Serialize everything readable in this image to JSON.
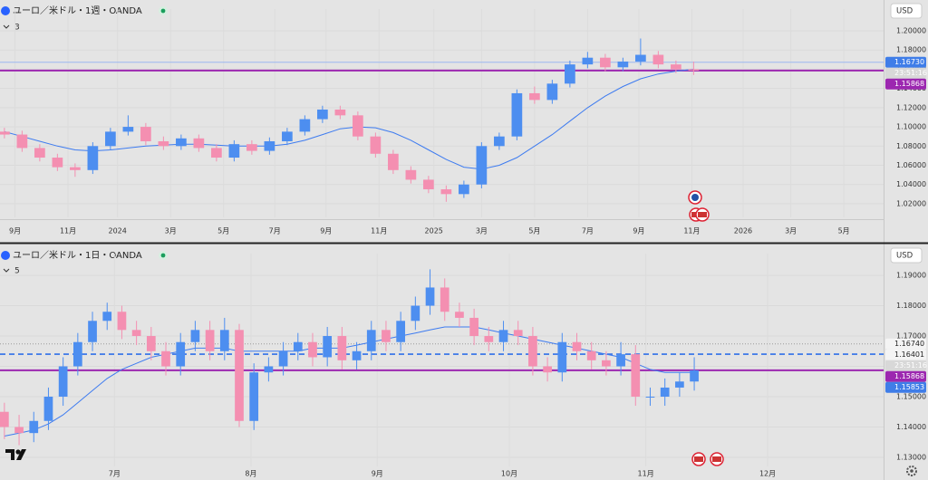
{
  "chart_data": [
    {
      "type": "candlestick",
      "title": "ユーロ／米ドル・1週・OANDA",
      "indicators": 3,
      "currency": "USD",
      "time_label": "23:51:16",
      "up_color": "#4d8ef0",
      "down_color": "#f48fb1",
      "ma_color": "#3d7bf0",
      "xlim": [
        -0.25,
        49.75
      ],
      "ylim": [
        1.0058,
        1.2132
      ],
      "grid": true,
      "xticks": [
        {
          "value": 0.6,
          "label": "9月"
        },
        {
          "value": 3.6,
          "label": "11月"
        },
        {
          "value": 6.4,
          "label": "2024"
        },
        {
          "value": 9.4,
          "label": "3月"
        },
        {
          "value": 12.4,
          "label": "5月"
        },
        {
          "value": 15.3,
          "label": "7月"
        },
        {
          "value": 18.2,
          "label": "9月"
        },
        {
          "value": 21.2,
          "label": "11月"
        },
        {
          "value": 24.3,
          "label": "2025"
        },
        {
          "value": 27.0,
          "label": "3月"
        },
        {
          "value": 30.0,
          "label": "5月"
        },
        {
          "value": 33.0,
          "label": "7月"
        },
        {
          "value": 35.9,
          "label": "9月"
        },
        {
          "value": 38.9,
          "label": "11月"
        },
        {
          "value": 41.8,
          "label": "2026"
        },
        {
          "value": 44.5,
          "label": "3月"
        },
        {
          "value": 47.5,
          "label": "5月"
        }
      ],
      "yticks": [
        {
          "value": 1.02,
          "label": "1.02000"
        },
        {
          "value": 1.04,
          "label": "1.04000"
        },
        {
          "value": 1.06,
          "label": "1.06000"
        },
        {
          "value": 1.08,
          "label": "1.08000"
        },
        {
          "value": 1.1,
          "label": "1.10000"
        },
        {
          "value": 1.12,
          "label": "1.12000"
        },
        {
          "value": 1.14,
          "label": "1.14000"
        },
        {
          "value": 1.16,
          "label": "1.16000"
        },
        {
          "value": 1.18,
          "label": "1.18000"
        },
        {
          "value": 1.2,
          "label": "1.20000"
        }
      ],
      "ohlc": [
        [
          1.095,
          1.099,
          1.088,
          1.092
        ],
        [
          1.092,
          1.096,
          1.074,
          1.078
        ],
        [
          1.078,
          1.082,
          1.064,
          1.068
        ],
        [
          1.068,
          1.072,
          1.054,
          1.058
        ],
        [
          1.058,
          1.062,
          1.048,
          1.055
        ],
        [
          1.055,
          1.084,
          1.051,
          1.08
        ],
        [
          1.08,
          1.099,
          1.076,
          1.095
        ],
        [
          1.095,
          1.112,
          1.091,
          1.1
        ],
        [
          1.1,
          1.104,
          1.081,
          1.085
        ],
        [
          1.085,
          1.09,
          1.076,
          1.08
        ],
        [
          1.08,
          1.092,
          1.076,
          1.088
        ],
        [
          1.088,
          1.092,
          1.074,
          1.078
        ],
        [
          1.078,
          1.082,
          1.064,
          1.068
        ],
        [
          1.068,
          1.086,
          1.064,
          1.082
        ],
        [
          1.082,
          1.086,
          1.071,
          1.075
        ],
        [
          1.075,
          1.089,
          1.071,
          1.085
        ],
        [
          1.085,
          1.099,
          1.081,
          1.095
        ],
        [
          1.095,
          1.112,
          1.091,
          1.108
        ],
        [
          1.108,
          1.122,
          1.104,
          1.118
        ],
        [
          1.118,
          1.122,
          1.108,
          1.112
        ],
        [
          1.112,
          1.116,
          1.086,
          1.09
        ],
        [
          1.09,
          1.094,
          1.068,
          1.072
        ],
        [
          1.072,
          1.076,
          1.051,
          1.055
        ],
        [
          1.055,
          1.059,
          1.041,
          1.045
        ],
        [
          1.045,
          1.049,
          1.031,
          1.035
        ],
        [
          1.035,
          1.039,
          1.022,
          1.03
        ],
        [
          1.03,
          1.044,
          1.026,
          1.04
        ],
        [
          1.04,
          1.084,
          1.036,
          1.08
        ],
        [
          1.08,
          1.094,
          1.076,
          1.09
        ],
        [
          1.09,
          1.139,
          1.086,
          1.135
        ],
        [
          1.135,
          1.142,
          1.124,
          1.128
        ],
        [
          1.128,
          1.149,
          1.124,
          1.145
        ],
        [
          1.145,
          1.169,
          1.141,
          1.165
        ],
        [
          1.165,
          1.178,
          1.161,
          1.172
        ],
        [
          1.172,
          1.176,
          1.158,
          1.162
        ],
        [
          1.162,
          1.172,
          1.158,
          1.168
        ],
        [
          1.168,
          1.192,
          1.164,
          1.175
        ],
        [
          1.175,
          1.179,
          1.161,
          1.165
        ],
        [
          1.165,
          1.169,
          1.156,
          1.16
        ],
        [
          1.16,
          1.168,
          1.154,
          1.15868
        ]
      ],
      "ma": [
        1.095,
        1.09,
        1.085,
        1.08,
        1.076,
        1.075,
        1.076,
        1.078,
        1.08,
        1.081,
        1.082,
        1.082,
        1.081,
        1.08,
        1.08,
        1.08,
        1.082,
        1.086,
        1.092,
        1.098,
        1.1,
        1.099,
        1.094,
        1.086,
        1.076,
        1.066,
        1.058,
        1.056,
        1.06,
        1.068,
        1.08,
        1.092,
        1.106,
        1.12,
        1.132,
        1.142,
        1.15,
        1.155,
        1.158,
        1.16
      ],
      "hlines": [
        {
          "value": 1.1673,
          "color": "#9bb8f0",
          "style": "solid"
        },
        {
          "value": 1.15868,
          "color": "#9c27b0",
          "style": "thick"
        }
      ],
      "price_labels": [
        {
          "value": 1.1673,
          "label": "1.16730",
          "color": "#3f7de8"
        },
        {
          "value": 1.15868,
          "label": "1.15868",
          "color": "#9c27b0"
        }
      ]
    },
    {
      "type": "candlestick",
      "title": "ユーロ／米ドル・1日・OANDA",
      "indicators": 5,
      "currency": "USD",
      "time_label": "23:51:16",
      "up_color": "#4d8ef0",
      "down_color": "#f48fb1",
      "ma_color": "#3d7bf0",
      "xlim": [
        -0.3,
        59.9
      ],
      "ylim": [
        1.127,
        1.1942
      ],
      "grid": true,
      "xticks": [
        {
          "value": 7.5,
          "label": "7月"
        },
        {
          "value": 16.8,
          "label": "8月"
        },
        {
          "value": 25.4,
          "label": "9月"
        },
        {
          "value": 34.4,
          "label": "10月"
        },
        {
          "value": 43.7,
          "label": "11月"
        },
        {
          "value": 52.0,
          "label": "12月"
        }
      ],
      "yticks": [
        {
          "value": 1.13,
          "label": "1.13000"
        },
        {
          "value": 1.14,
          "label": "1.14000"
        },
        {
          "value": 1.15,
          "label": "1.15000"
        },
        {
          "value": 1.16,
          "label": "1.16000"
        },
        {
          "value": 1.17,
          "label": "1.17000"
        },
        {
          "value": 1.18,
          "label": "1.18000"
        },
        {
          "value": 1.19,
          "label": "1.19000"
        }
      ],
      "ohlc": [
        [
          1.145,
          1.148,
          1.136,
          1.14
        ],
        [
          1.14,
          1.144,
          1.134,
          1.138
        ],
        [
          1.138,
          1.145,
          1.135,
          1.142
        ],
        [
          1.142,
          1.153,
          1.139,
          1.15
        ],
        [
          1.15,
          1.163,
          1.147,
          1.16
        ],
        [
          1.16,
          1.171,
          1.157,
          1.168
        ],
        [
          1.168,
          1.178,
          1.165,
          1.175
        ],
        [
          1.175,
          1.181,
          1.172,
          1.178
        ],
        [
          1.178,
          1.18,
          1.169,
          1.172
        ],
        [
          1.172,
          1.175,
          1.167,
          1.17
        ],
        [
          1.17,
          1.173,
          1.162,
          1.165
        ],
        [
          1.165,
          1.168,
          1.157,
          1.16
        ],
        [
          1.16,
          1.171,
          1.157,
          1.168
        ],
        [
          1.168,
          1.175,
          1.165,
          1.172
        ],
        [
          1.172,
          1.175,
          1.162,
          1.165
        ],
        [
          1.165,
          1.176,
          1.162,
          1.172
        ],
        [
          1.172,
          1.174,
          1.14,
          1.142
        ],
        [
          1.142,
          1.161,
          1.139,
          1.158
        ],
        [
          1.158,
          1.163,
          1.155,
          1.16
        ],
        [
          1.16,
          1.168,
          1.157,
          1.165
        ],
        [
          1.165,
          1.171,
          1.162,
          1.168
        ],
        [
          1.168,
          1.171,
          1.16,
          1.163
        ],
        [
          1.163,
          1.173,
          1.16,
          1.17
        ],
        [
          1.17,
          1.173,
          1.159,
          1.162
        ],
        [
          1.162,
          1.168,
          1.159,
          1.165
        ],
        [
          1.165,
          1.175,
          1.162,
          1.172
        ],
        [
          1.172,
          1.175,
          1.165,
          1.168
        ],
        [
          1.168,
          1.178,
          1.165,
          1.175
        ],
        [
          1.175,
          1.183,
          1.172,
          1.18
        ],
        [
          1.18,
          1.192,
          1.177,
          1.186
        ],
        [
          1.186,
          1.189,
          1.175,
          1.178
        ],
        [
          1.178,
          1.181,
          1.173,
          1.176
        ],
        [
          1.176,
          1.179,
          1.167,
          1.17
        ],
        [
          1.17,
          1.173,
          1.165,
          1.168
        ],
        [
          1.168,
          1.175,
          1.165,
          1.172
        ],
        [
          1.172,
          1.175,
          1.167,
          1.17
        ],
        [
          1.17,
          1.173,
          1.157,
          1.16
        ],
        [
          1.16,
          1.163,
          1.155,
          1.158
        ],
        [
          1.158,
          1.171,
          1.155,
          1.168
        ],
        [
          1.168,
          1.171,
          1.162,
          1.165
        ],
        [
          1.165,
          1.168,
          1.159,
          1.162
        ],
        [
          1.162,
          1.165,
          1.157,
          1.16
        ],
        [
          1.16,
          1.168,
          1.157,
          1.164
        ],
        [
          1.164,
          1.167,
          1.147,
          1.15
        ],
        [
          1.15,
          1.153,
          1.147,
          1.15
        ],
        [
          1.15,
          1.156,
          1.147,
          1.153
        ],
        [
          1.153,
          1.158,
          1.15,
          1.155
        ],
        [
          1.155,
          1.163,
          1.152,
          1.15868
        ]
      ],
      "ma": [
        1.137,
        1.138,
        1.139,
        1.141,
        1.144,
        1.148,
        1.152,
        1.156,
        1.159,
        1.161,
        1.163,
        1.164,
        1.165,
        1.166,
        1.166,
        1.166,
        1.165,
        1.165,
        1.165,
        1.165,
        1.165,
        1.166,
        1.166,
        1.166,
        1.167,
        1.168,
        1.169,
        1.17,
        1.171,
        1.172,
        1.173,
        1.173,
        1.173,
        1.172,
        1.171,
        1.17,
        1.169,
        1.168,
        1.167,
        1.166,
        1.165,
        1.164,
        1.163,
        1.161,
        1.159,
        1.158,
        1.158,
        1.158
      ],
      "hlines": [
        {
          "value": 1.1674,
          "color": "#9a9a9a",
          "style": "dotted"
        },
        {
          "value": 1.16401,
          "color": "#2f6fe8",
          "style": "dashed"
        },
        {
          "value": 1.15868,
          "color": "#9c27b0",
          "style": "thick"
        }
      ],
      "price_labels": [
        {
          "value": 1.1674,
          "label": "1.16740",
          "color": "#f4f4f4"
        },
        {
          "value": 1.16401,
          "label": "1.16401",
          "color": "#f4f4f4"
        },
        {
          "value": 1.15868,
          "label": "1.15868",
          "color": "#9c27b0"
        },
        {
          "value": 1.15853,
          "label": "1.15853",
          "color": "#3f7de8"
        }
      ]
    }
  ]
}
